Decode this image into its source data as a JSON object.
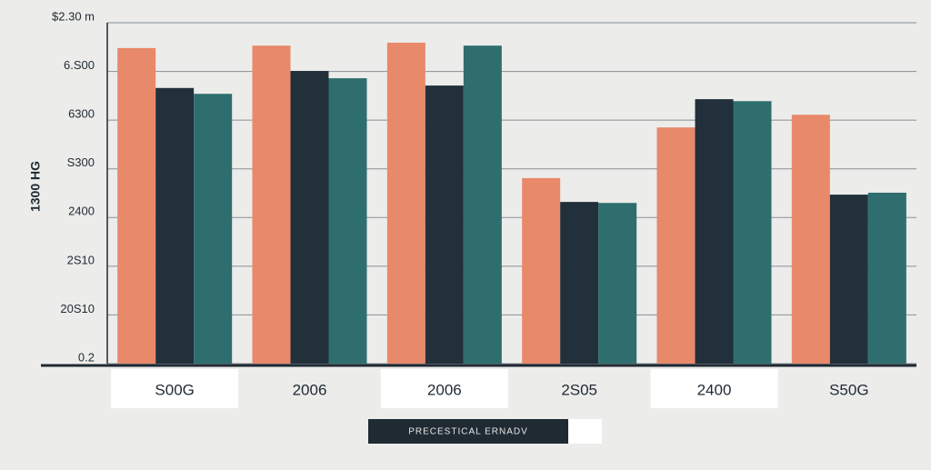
{
  "chart_data": {
    "type": "bar",
    "y_label": "1300 HG",
    "x_label": "PRECESTICAL ERNADV",
    "categories": [
      "S00G",
      "2006",
      "2006",
      "2S05",
      "2400",
      "S50G"
    ],
    "series": [
      {
        "color": "#e8896a",
        "values": [
          6.48,
          6.53,
          6.59,
          3.81,
          4.85,
          5.11
        ]
      },
      {
        "color": "#22303b",
        "values": [
          5.66,
          6.01,
          5.71,
          3.32,
          5.43,
          3.47
        ]
      },
      {
        "color": "#2f6e6e",
        "values": [
          5.54,
          5.86,
          6.53,
          3.3,
          5.39,
          3.51
        ]
      }
    ],
    "ylim": [
      0,
      7
    ],
    "yticks": [
      {
        "value": 0,
        "label": "0.2"
      },
      {
        "value": 1,
        "label": "20S10"
      },
      {
        "value": 2,
        "label": "2S10"
      },
      {
        "value": 3,
        "label": "2400"
      },
      {
        "value": 4,
        "label": "S300"
      },
      {
        "value": 5,
        "label": "6300"
      },
      {
        "value": 6,
        "label": "6.S00"
      },
      {
        "value": 7,
        "label": "$2.30 m"
      }
    ],
    "grid": true
  }
}
